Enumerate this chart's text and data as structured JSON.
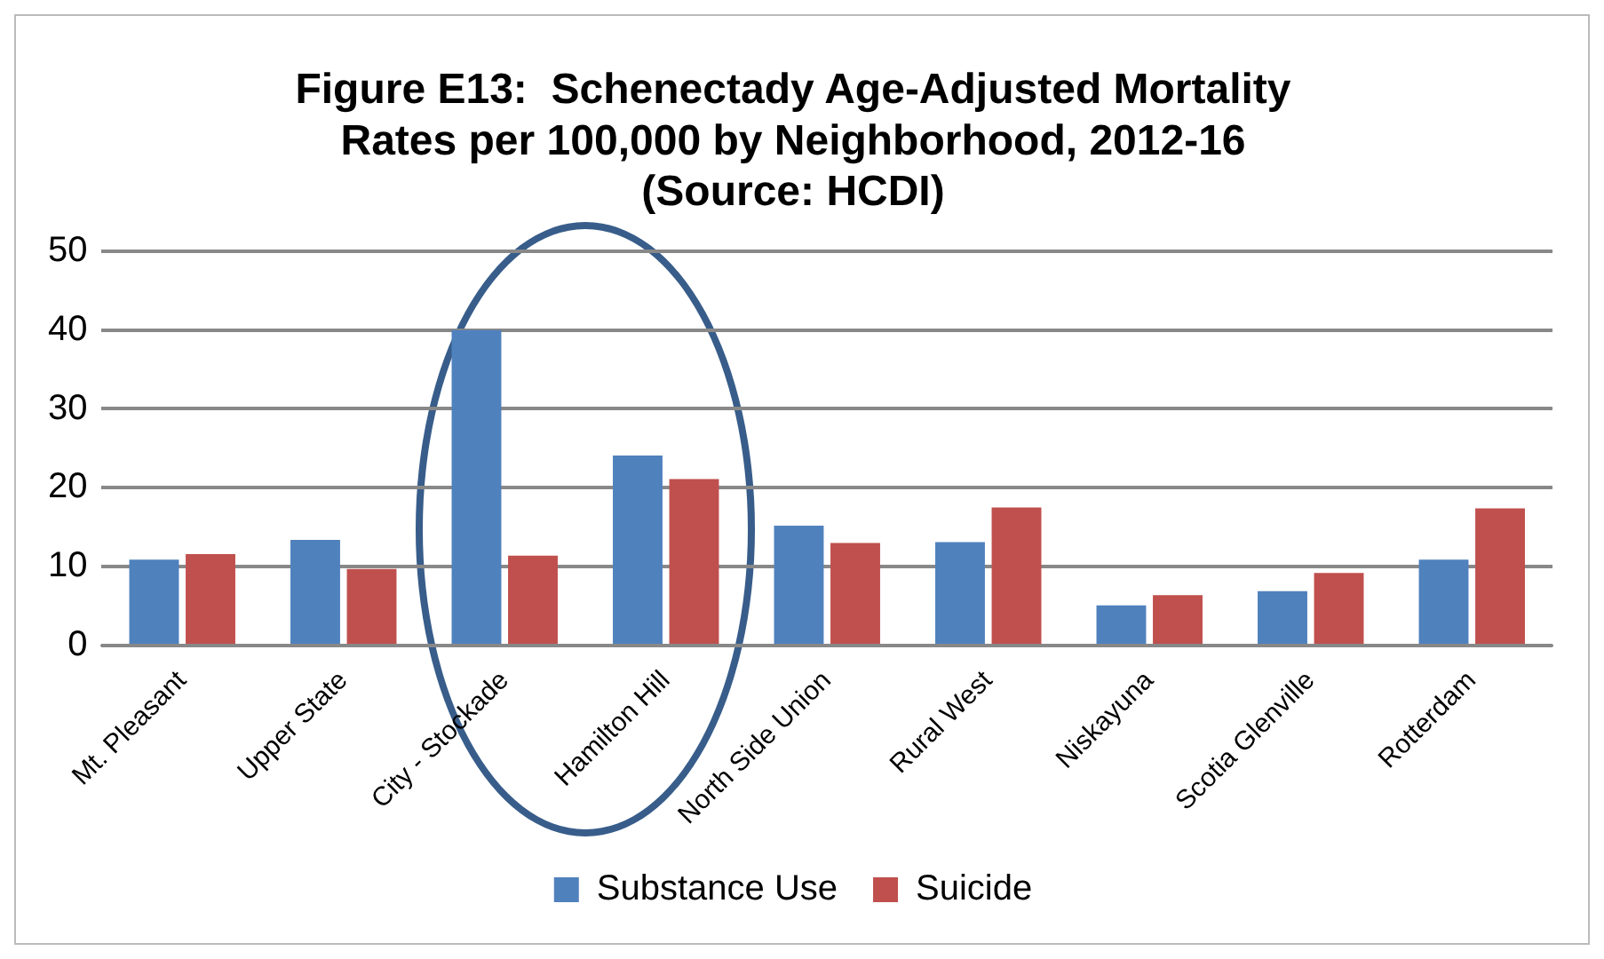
{
  "chart_data": {
    "type": "bar",
    "title": "Figure E13:  Schenectady Age-Adjusted Mortality\nRates per 100,000 by Neighborhood, 2012-16\n(Source: HCDI)",
    "categories": [
      "Mt. Pleasant",
      "Upper State",
      "City - Stockade",
      "Hamilton Hill",
      "North Side Union",
      "Rural West",
      "Niskayuna",
      "Scotia Glenville",
      "Rotterdam"
    ],
    "series": [
      {
        "name": "Substance Use",
        "color": "#4f81bd",
        "values": [
          10.9,
          13.4,
          40,
          24.1,
          15.2,
          13.1,
          5.1,
          6.9,
          10.9
        ]
      },
      {
        "name": "Suicide",
        "color": "#c0504d",
        "values": [
          11.6,
          9.7,
          11.4,
          21.1,
          13,
          17.5,
          6.4,
          9.2,
          17.4
        ]
      }
    ],
    "ylim": [
      0,
      50
    ],
    "yticks": [
      0,
      10,
      20,
      30,
      40,
      50
    ],
    "grid": "y",
    "legend": "bottom"
  }
}
